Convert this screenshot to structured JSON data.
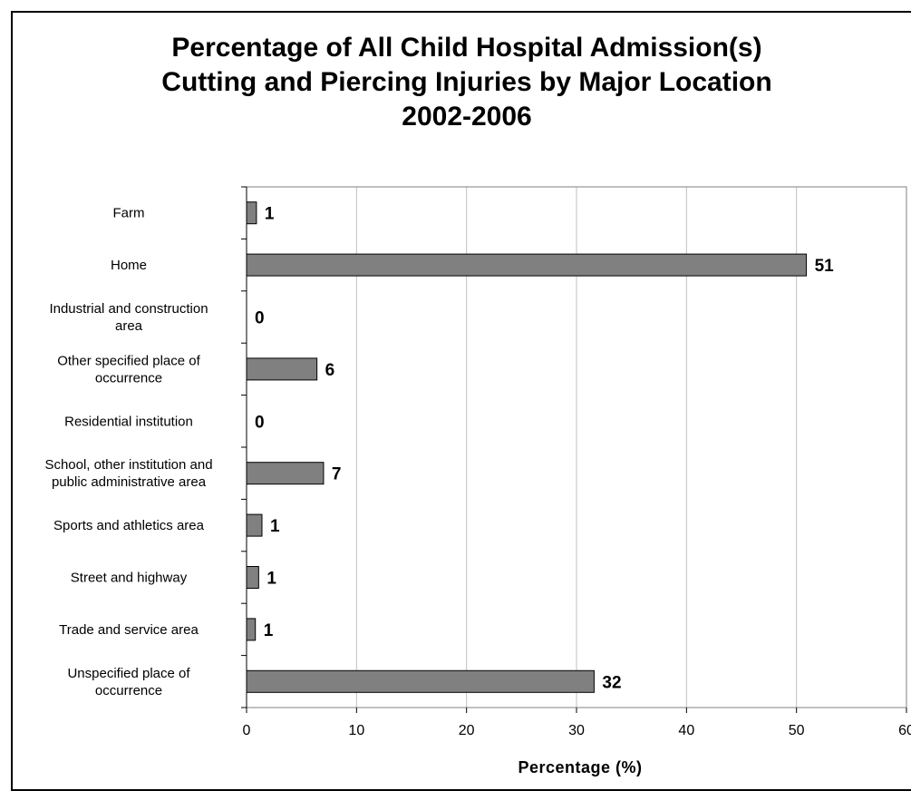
{
  "chart_data": {
    "type": "bar",
    "orientation": "horizontal",
    "title_lines": [
      "Percentage of All Child Hospital Admission(s)",
      "Cutting and Piercing Injuries by Major Location",
      "2002-2006"
    ],
    "xlabel": "Percentage (%)",
    "ylabel": "",
    "xlim": [
      0,
      60
    ],
    "x_ticks": [
      "0",
      "10",
      "20",
      "30",
      "40",
      "50",
      "60"
    ],
    "grid": "vertical",
    "legend": "none",
    "categories": [
      [
        "Farm"
      ],
      [
        "Home"
      ],
      [
        "Industrial and construction",
        "area"
      ],
      [
        "Other specified place of",
        "occurrence"
      ],
      [
        "Residential institution"
      ],
      [
        "School, other institution and",
        "public administrative area"
      ],
      [
        "Sports and athletics area"
      ],
      [
        "Street and highway"
      ],
      [
        "Trade and service area"
      ],
      [
        "Unspecified place of",
        "occurrence"
      ]
    ],
    "values": [
      0.9,
      50.9,
      0,
      6.4,
      0,
      7.0,
      1.4,
      1.1,
      0.8,
      31.6
    ],
    "data_labels": [
      "1",
      "51",
      "0",
      "6",
      "0",
      "7",
      "1",
      "1",
      "1",
      "32"
    ],
    "colors": {
      "bar_fill": "#808080",
      "bar_stroke": "#000000",
      "grid": "#c0c0c0",
      "plot_border": "#808080"
    }
  }
}
